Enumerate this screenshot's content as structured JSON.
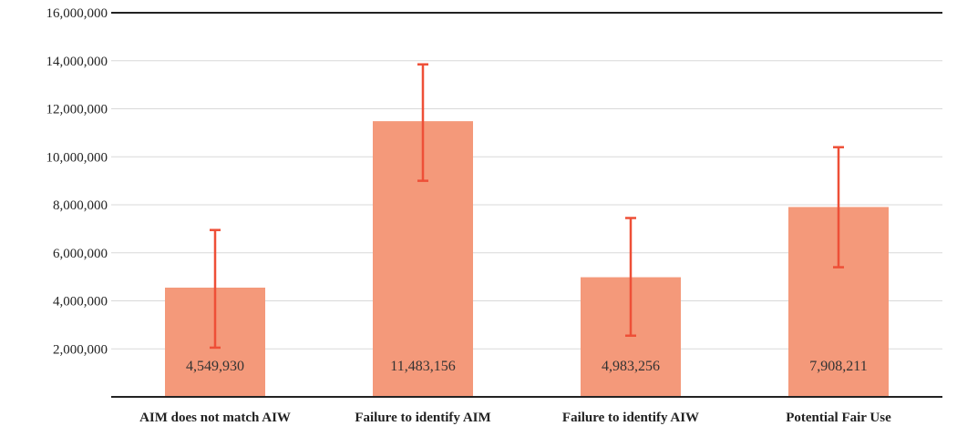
{
  "chart_data": {
    "type": "bar",
    "title": "",
    "xlabel": "",
    "ylabel": "",
    "categories": [
      "AIM does not match AIW",
      "Failure to identify AIM",
      "Failure to identify AIW",
      "Potential Fair Use"
    ],
    "values": [
      4549930,
      11483156,
      4983256,
      7908211
    ],
    "value_labels": [
      "4,549,930",
      "11,483,156",
      "4,983,256",
      "7,908,211"
    ],
    "error_bars": [
      {
        "low": 2050000,
        "high": 6950000
      },
      {
        "low": 9000000,
        "high": 13850000
      },
      {
        "low": 2550000,
        "high": 7450000
      },
      {
        "low": 5400000,
        "high": 10400000
      }
    ],
    "ylim": [
      0,
      16000000
    ],
    "yticks": [
      2000000,
      4000000,
      6000000,
      8000000,
      10000000,
      12000000,
      14000000,
      16000000
    ],
    "ytick_labels": [
      "2,000,000",
      "4,000,000",
      "6,000,000",
      "8,000,000",
      "10,000,000",
      "12,000,000",
      "14,000,000",
      "16,000,000"
    ],
    "grid": true,
    "legend": "none",
    "colors": {
      "bar": "#f4997a",
      "error": "#ee4f37",
      "grid": "#d9d9d9",
      "axis": "#222222"
    }
  }
}
